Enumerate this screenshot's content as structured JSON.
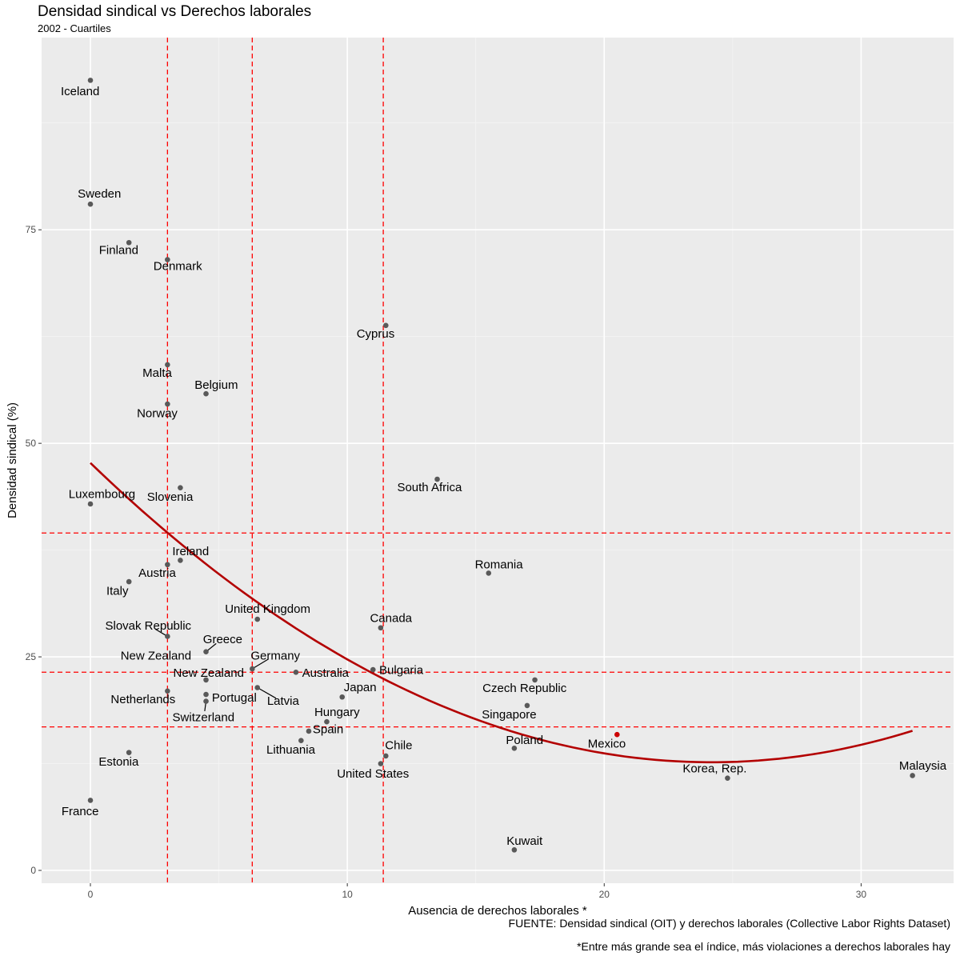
{
  "chart_data": {
    "type": "scatter",
    "title": "Densidad sindical vs Derechos laborales",
    "subtitle": "2002 - Cuartiles",
    "xlabel": "Ausencia de derechos laborales *",
    "ylabel": "Densidad sindical (%)",
    "caption": [
      "FUENTE: Densidad sindical (OIT) y derechos laborales (Collective Labor Rights Dataset)",
      "*Entre más grande sea el índice, más violaciones a derechos laborales hay"
    ],
    "xlim": [
      -1.9,
      33.6
    ],
    "ylim": [
      -1.5,
      97.5
    ],
    "x_ticks": [
      0,
      10,
      20,
      30
    ],
    "y_ticks": [
      0,
      25,
      50,
      75
    ],
    "quartiles_x": [
      3,
      6.3,
      11.4
    ],
    "quartiles_y": [
      16.8,
      23.2,
      39.5
    ],
    "highlight": "Mexico",
    "trend": {
      "a": 47.7,
      "b": -2.9,
      "c": 0.06,
      "from": 0,
      "to": 32
    },
    "points": [
      {
        "name": "Iceland",
        "x": 0,
        "y": 92.5
      },
      {
        "name": "Sweden",
        "x": 0,
        "y": 78
      },
      {
        "name": "Finland",
        "x": 1.5,
        "y": 73.5
      },
      {
        "name": "Denmark",
        "x": 3,
        "y": 71.5
      },
      {
        "name": "Cyprus",
        "x": 11.5,
        "y": 63.8
      },
      {
        "name": "Malta",
        "x": 3,
        "y": 59.2
      },
      {
        "name": "Belgium",
        "x": 4.5,
        "y": 55.8
      },
      {
        "name": "Norway",
        "x": 3,
        "y": 54.6
      },
      {
        "name": "South Africa",
        "x": 13.5,
        "y": 45.8
      },
      {
        "name": "Slovenia",
        "x": 3.5,
        "y": 44.8
      },
      {
        "name": "Luxembourg",
        "x": 0,
        "y": 42.9
      },
      {
        "name": "Ireland",
        "x": 3.5,
        "y": 36.3
      },
      {
        "name": "Austria",
        "x": 3,
        "y": 35.8
      },
      {
        "name": "Romania",
        "x": 15.5,
        "y": 34.8
      },
      {
        "name": "Italy",
        "x": 1.5,
        "y": 33.8
      },
      {
        "name": "United Kingdom",
        "x": 6.5,
        "y": 29.4
      },
      {
        "name": "Canada",
        "x": 11.3,
        "y": 28.4
      },
      {
        "name": "Slovak Republic",
        "x": 3,
        "y": 27.4
      },
      {
        "name": "Greece",
        "x": 4.5,
        "y": 25.6
      },
      {
        "name": "Germany",
        "x": 6.3,
        "y": 23.6
      },
      {
        "name": "New Zealand",
        "x": 4.5,
        "y": 22.3
      },
      {
        "name": "Australia",
        "x": 8,
        "y": 23.2
      },
      {
        "name": "Bulgaria",
        "x": 11,
        "y": 23.5
      },
      {
        "name": "Czech Republic",
        "x": 17.3,
        "y": 22.3
      },
      {
        "name": "Latvia",
        "x": 6.5,
        "y": 21.4
      },
      {
        "name": "Netherlands",
        "x": 3,
        "y": 21
      },
      {
        "name": "Portugal",
        "x": 4.5,
        "y": 20.6
      },
      {
        "name": "Japan",
        "x": 9.8,
        "y": 20.3
      },
      {
        "name": "Switzerland",
        "x": 4.5,
        "y": 19.8
      },
      {
        "name": "Singapore",
        "x": 17,
        "y": 19.3
      },
      {
        "name": "Hungary",
        "x": 9.2,
        "y": 17.4
      },
      {
        "name": "Spain",
        "x": 8.5,
        "y": 16.3
      },
      {
        "name": "Mexico",
        "x": 20.5,
        "y": 15.9
      },
      {
        "name": "Lithuania",
        "x": 8.2,
        "y": 15.2
      },
      {
        "name": "Poland",
        "x": 16.5,
        "y": 14.3
      },
      {
        "name": "Estonia",
        "x": 1.5,
        "y": 13.8
      },
      {
        "name": "Chile",
        "x": 11.5,
        "y": 13.4
      },
      {
        "name": "United States",
        "x": 11.3,
        "y": 12.5
      },
      {
        "name": "Malaysia",
        "x": 32,
        "y": 11.1
      },
      {
        "name": "Korea, Rep.",
        "x": 24.8,
        "y": 10.8
      },
      {
        "name": "France",
        "x": 0,
        "y": 8.2
      },
      {
        "name": "Kuwait",
        "x": 16.5,
        "y": 2.4
      }
    ],
    "labels": [
      {
        "name": "Iceland",
        "x": -0.4,
        "y": 91.2
      },
      {
        "name": "Sweden",
        "x": 0.35,
        "y": 79.2
      },
      {
        "name": "Finland",
        "x": 1.1,
        "y": 72.6
      },
      {
        "name": "Denmark",
        "x": 3.4,
        "y": 70.7
      },
      {
        "name": "Cyprus",
        "x": 11.1,
        "y": 62.8
      },
      {
        "name": "Malta",
        "x": 2.6,
        "y": 58.2
      },
      {
        "name": "Belgium",
        "x": 4.9,
        "y": 56.8
      },
      {
        "name": "Norway",
        "x": 2.6,
        "y": 53.5
      },
      {
        "name": "South Africa",
        "x": 13.2,
        "y": 44.8
      },
      {
        "name": "Slovenia",
        "x": 3.1,
        "y": 43.7
      },
      {
        "name": "Luxembourg",
        "x": 0.45,
        "y": 44.0
      },
      {
        "name": "Ireland",
        "x": 3.9,
        "y": 37.3
      },
      {
        "name": "Austria",
        "x": 2.6,
        "y": 34.8
      },
      {
        "name": "Romania",
        "x": 15.9,
        "y": 35.8
      },
      {
        "name": "Italy",
        "x": 1.05,
        "y": 32.7
      },
      {
        "name": "United Kingdom",
        "x": 6.9,
        "y": 30.6
      },
      {
        "name": "Canada",
        "x": 11.7,
        "y": 29.5
      },
      {
        "name": "Slovak Republic",
        "x": 2.25,
        "y": 28.6
      },
      {
        "name": "Greece",
        "x": 5.15,
        "y": 27.0
      },
      {
        "name": "Germany",
        "x": 7.2,
        "y": 25.1
      },
      {
        "name": "New Zealand",
        "x": 2.55,
        "y": 25.1
      },
      {
        "name": "New Zealand",
        "x": 4.6,
        "y": 23.1
      },
      {
        "name": "Australia",
        "x": 9.15,
        "y": 23.1
      },
      {
        "name": "Bulgaria",
        "x": 12.1,
        "y": 23.4
      },
      {
        "name": "Czech Republic",
        "x": 16.9,
        "y": 21.3
      },
      {
        "name": "Latvia",
        "x": 7.5,
        "y": 19.8
      },
      {
        "name": "Netherlands",
        "x": 2.05,
        "y": 20.0
      },
      {
        "name": "Portugal",
        "x": 5.6,
        "y": 20.2
      },
      {
        "name": "Japan",
        "x": 10.5,
        "y": 21.4
      },
      {
        "name": "Switzerland",
        "x": 4.4,
        "y": 17.9
      },
      {
        "name": "Singapore",
        "x": 16.3,
        "y": 18.2
      },
      {
        "name": "Hungary",
        "x": 9.6,
        "y": 18.5
      },
      {
        "name": "Spain",
        "x": 9.25,
        "y": 16.5
      },
      {
        "name": "Mexico",
        "x": 20.1,
        "y": 14.8
      },
      {
        "name": "Lithuania",
        "x": 7.8,
        "y": 14.1
      },
      {
        "name": "Poland",
        "x": 16.9,
        "y": 15.2
      },
      {
        "name": "Estonia",
        "x": 1.1,
        "y": 12.7
      },
      {
        "name": "Chile",
        "x": 12.0,
        "y": 14.6
      },
      {
        "name": "United States",
        "x": 11.0,
        "y": 11.3
      },
      {
        "name": "Malaysia",
        "x": 32.4,
        "y": 12.2
      },
      {
        "name": "Korea, Rep.",
        "x": 24.3,
        "y": 11.9
      },
      {
        "name": "France",
        "x": -0.4,
        "y": 6.9
      },
      {
        "name": "Kuwait",
        "x": 16.9,
        "y": 3.4
      }
    ],
    "leaders": [
      "Slovak Republic",
      "Greece",
      "Germany",
      "New Zealand",
      "Latvia",
      "Switzerland"
    ]
  }
}
